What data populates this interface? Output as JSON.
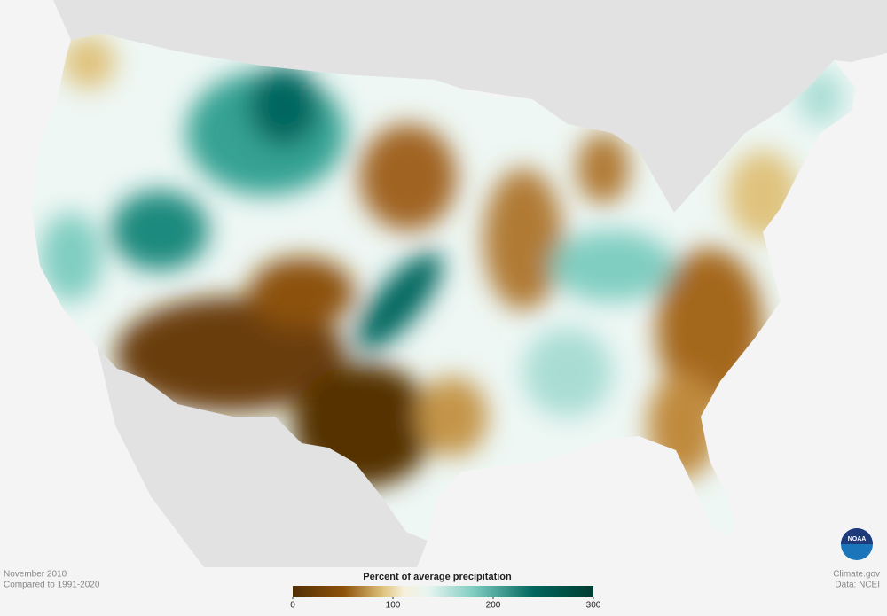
{
  "map": {
    "footer_left": {
      "date": "November 2010",
      "baseline": "Compared to 1991-2020"
    },
    "footer_right": {
      "source": "Climate.gov",
      "data": "Data: NCEI"
    },
    "logo": "NOAA",
    "legend": {
      "title": "Percent of average precipitation",
      "range": [
        0,
        300
      ],
      "ticks": [
        0,
        100,
        200,
        300
      ]
    }
  }
}
